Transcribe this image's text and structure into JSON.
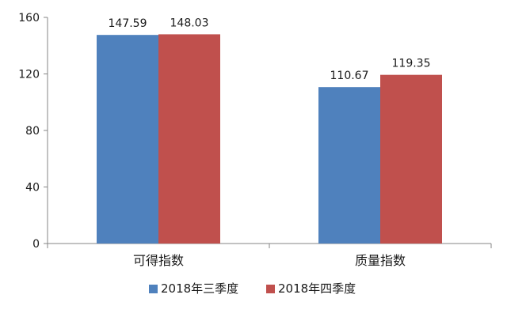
{
  "chart_data": {
    "type": "bar",
    "categories": [
      "可得指数",
      "质量指数"
    ],
    "series": [
      {
        "name": "2018年三季度",
        "values": [
          147.59,
          110.67
        ],
        "color": "#4f81bd"
      },
      {
        "name": "2018年四季度",
        "values": [
          148.03,
          119.35
        ],
        "color": "#c0504d"
      }
    ],
    "ylim": [
      0,
      160
    ],
    "yticks": [
      0,
      40,
      80,
      120,
      160
    ],
    "grid": false,
    "legend_position": "bottom",
    "data_labels": [
      "147.59",
      "148.03",
      "110.67",
      "119.35"
    ]
  }
}
